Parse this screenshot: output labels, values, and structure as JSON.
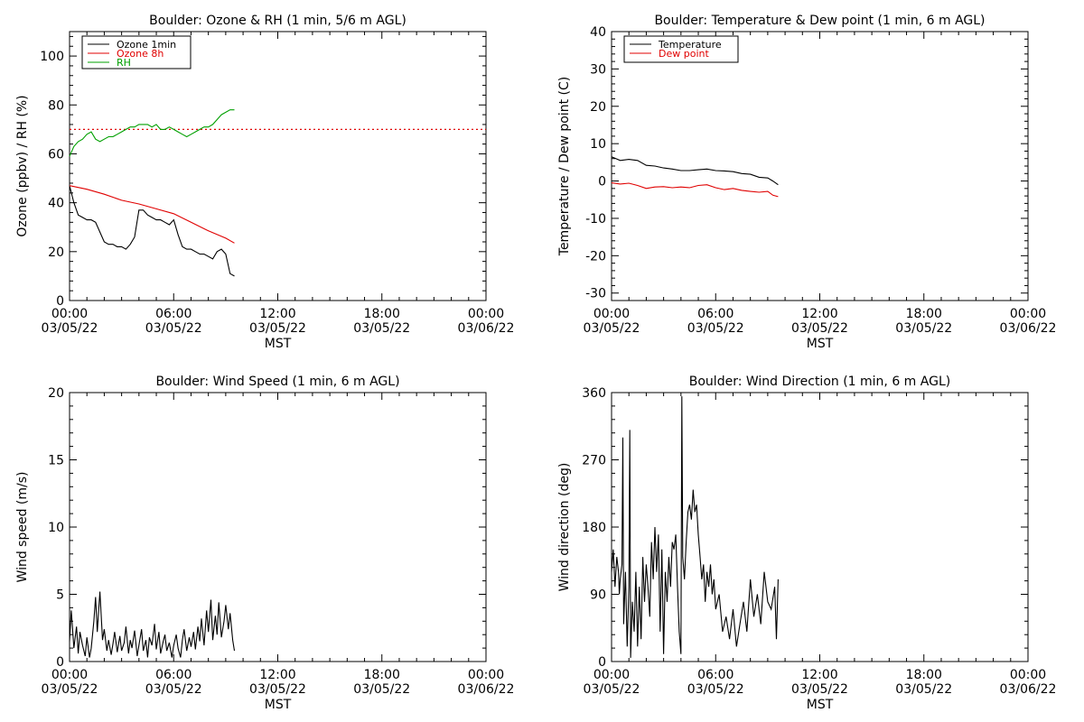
{
  "colors": {
    "black": "#000000",
    "red": "#e00000",
    "green": "#00a000"
  },
  "x_axis": {
    "hours": [
      0,
      6,
      12,
      18,
      24
    ],
    "time_labels": [
      "00:00",
      "06:00",
      "12:00",
      "18:00",
      "00:00"
    ],
    "date_labels": [
      "03/05/22",
      "03/05/22",
      "03/05/22",
      "03/05/22",
      "03/06/22"
    ],
    "label": "MST"
  },
  "chart_data": [
    {
      "type": "line",
      "title": "Boulder: Ozone & RH (1 min, 5/6 m AGL)",
      "xlabel": "MST",
      "ylabel": "Ozone (ppbv) / RH (%)",
      "xlim": [
        0,
        24
      ],
      "ylim": [
        0,
        110
      ],
      "yticks": [
        0,
        20,
        40,
        60,
        80,
        100
      ],
      "legend_position": "top-left",
      "reference_line": {
        "y": 70,
        "style": "dotted",
        "color": "#e00000"
      },
      "series": [
        {
          "name": "Ozone 1min",
          "color": "#000000",
          "x": [
            0.0,
            0.25,
            0.5,
            0.75,
            1.0,
            1.25,
            1.5,
            1.75,
            2.0,
            2.25,
            2.5,
            2.75,
            3.0,
            3.25,
            3.5,
            3.75,
            4.0,
            4.25,
            4.5,
            4.75,
            5.0,
            5.25,
            5.5,
            5.75,
            6.0,
            6.25,
            6.5,
            6.75,
            7.0,
            7.25,
            7.5,
            7.75,
            8.0,
            8.25,
            8.5,
            8.75,
            9.0,
            9.25,
            9.5
          ],
          "y": [
            47,
            40,
            35,
            34,
            33,
            33,
            32,
            28,
            24,
            23,
            23,
            22,
            22,
            21,
            23,
            26,
            37,
            37,
            35,
            34,
            33,
            33,
            32,
            31,
            33,
            27,
            22,
            21,
            21,
            20,
            19,
            19,
            18,
            17,
            20,
            21,
            19,
            11,
            10
          ]
        },
        {
          "name": "Ozone 8h",
          "color": "#e00000",
          "x": [
            0.0,
            1.0,
            2.0,
            3.0,
            4.0,
            5.0,
            6.0,
            7.0,
            8.0,
            9.0,
            9.5
          ],
          "y": [
            47,
            45.5,
            43.5,
            41,
            39.5,
            37.5,
            35.5,
            32,
            28.5,
            25.5,
            23.5
          ]
        },
        {
          "name": "RH",
          "color": "#00a000",
          "x": [
            0.0,
            0.25,
            0.5,
            0.75,
            1.0,
            1.25,
            1.5,
            1.75,
            2.0,
            2.25,
            2.5,
            2.75,
            3.0,
            3.25,
            3.5,
            3.75,
            4.0,
            4.25,
            4.5,
            4.75,
            5.0,
            5.25,
            5.5,
            5.75,
            6.0,
            6.25,
            6.5,
            6.75,
            7.0,
            7.25,
            7.5,
            7.75,
            8.0,
            8.25,
            8.5,
            8.75,
            9.0,
            9.25,
            9.5
          ],
          "y": [
            59,
            63,
            65,
            66,
            68,
            69,
            66,
            65,
            66,
            67,
            67,
            68,
            69,
            70,
            71,
            71,
            72,
            72,
            72,
            71,
            72,
            70,
            70,
            71,
            70,
            69,
            68,
            67,
            68,
            69,
            70,
            71,
            71,
            72,
            74,
            76,
            77,
            78,
            78
          ]
        }
      ]
    },
    {
      "type": "line",
      "title": "Boulder: Temperature & Dew point (1 min, 6 m AGL)",
      "xlabel": "MST",
      "ylabel": "Temperature / Dew point (C)",
      "xlim": [
        0,
        24
      ],
      "ylim": [
        -32,
        40
      ],
      "yticks": [
        -30,
        -20,
        -10,
        0,
        10,
        20,
        30,
        40
      ],
      "legend_position": "top-left",
      "series": [
        {
          "name": "Temperature",
          "color": "#000000",
          "x": [
            0.0,
            0.5,
            1.0,
            1.5,
            2.0,
            2.5,
            3.0,
            3.5,
            4.0,
            4.5,
            5.0,
            5.5,
            6.0,
            6.5,
            7.0,
            7.5,
            8.0,
            8.5,
            9.0,
            9.3,
            9.6
          ],
          "y": [
            6.5,
            5.5,
            5.8,
            5.5,
            4.2,
            4.0,
            3.5,
            3.2,
            2.8,
            2.8,
            3.0,
            3.2,
            2.8,
            2.7,
            2.5,
            2.0,
            1.8,
            1.0,
            0.8,
            0.0,
            -1.0
          ]
        },
        {
          "name": "Dew point",
          "color": "#e00000",
          "x": [
            0.0,
            0.5,
            1.0,
            1.5,
            2.0,
            2.5,
            3.0,
            3.5,
            4.0,
            4.5,
            5.0,
            5.5,
            6.0,
            6.5,
            7.0,
            7.5,
            8.0,
            8.5,
            9.0,
            9.3,
            9.6
          ],
          "y": [
            -0.5,
            -0.8,
            -0.6,
            -1.2,
            -2.0,
            -1.6,
            -1.5,
            -1.8,
            -1.6,
            -1.8,
            -1.2,
            -1.0,
            -1.8,
            -2.3,
            -2.0,
            -2.5,
            -2.8,
            -3.0,
            -2.8,
            -3.8,
            -4.2
          ]
        }
      ]
    },
    {
      "type": "line",
      "title": "Boulder: Wind Speed (1 min, 6 m AGL)",
      "xlabel": "MST",
      "ylabel": "Wind speed (m/s)",
      "xlim": [
        0,
        24
      ],
      "ylim": [
        0,
        20
      ],
      "yticks": [
        0,
        5,
        10,
        15,
        20
      ],
      "series": [
        {
          "color": "#000000",
          "x": [
            0.0,
            0.1,
            0.25,
            0.4,
            0.5,
            0.6,
            0.75,
            0.9,
            1.0,
            1.15,
            1.25,
            1.4,
            1.5,
            1.6,
            1.75,
            1.9,
            2.0,
            2.15,
            2.25,
            2.4,
            2.5,
            2.6,
            2.75,
            2.9,
            3.0,
            3.15,
            3.25,
            3.4,
            3.5,
            3.6,
            3.75,
            3.9,
            4.0,
            4.15,
            4.25,
            4.4,
            4.5,
            4.6,
            4.75,
            4.9,
            5.0,
            5.15,
            5.25,
            5.4,
            5.5,
            5.6,
            5.75,
            5.9,
            6.0,
            6.15,
            6.25,
            6.4,
            6.5,
            6.6,
            6.75,
            6.9,
            7.0,
            7.15,
            7.25,
            7.4,
            7.5,
            7.6,
            7.75,
            7.9,
            8.0,
            8.15,
            8.25,
            8.4,
            8.5,
            8.6,
            8.75,
            8.9,
            9.0,
            9.15,
            9.25,
            9.4,
            9.5
          ],
          "y": [
            1.5,
            3.8,
            1.0,
            2.6,
            0.6,
            2.2,
            1.2,
            0.4,
            1.8,
            0.3,
            1.0,
            3.0,
            4.8,
            2.2,
            5.2,
            1.6,
            2.4,
            0.8,
            1.6,
            0.5,
            1.3,
            2.2,
            0.7,
            1.9,
            0.8,
            1.4,
            2.6,
            0.6,
            1.6,
            1.0,
            2.3,
            0.4,
            1.2,
            2.4,
            0.8,
            1.6,
            0.3,
            1.8,
            1.2,
            2.8,
            0.9,
            2.2,
            0.6,
            1.5,
            2.0,
            0.8,
            1.4,
            0.3,
            1.2,
            2.0,
            1.0,
            0.3,
            1.6,
            2.4,
            0.8,
            1.8,
            1.1,
            2.2,
            0.9,
            2.6,
            1.5,
            3.2,
            1.2,
            3.8,
            2.2,
            4.6,
            1.6,
            3.4,
            2.0,
            4.4,
            1.8,
            3.0,
            4.2,
            2.4,
            3.6,
            1.6,
            0.8
          ]
        }
      ]
    },
    {
      "type": "line",
      "title": "Boulder: Wind Direction (1 min, 6 m AGL)",
      "xlabel": "MST",
      "ylabel": "Wind direction (deg)",
      "xlim": [
        0,
        24
      ],
      "ylim": [
        0,
        360
      ],
      "yticks": [
        0,
        90,
        180,
        270,
        360
      ],
      "series": [
        {
          "color": "#000000",
          "x": [
            0.0,
            0.1,
            0.2,
            0.3,
            0.4,
            0.45,
            0.5,
            0.6,
            0.65,
            0.7,
            0.8,
            0.9,
            1.0,
            1.05,
            1.1,
            1.2,
            1.3,
            1.4,
            1.5,
            1.6,
            1.7,
            1.8,
            1.9,
            2.0,
            2.1,
            2.2,
            2.3,
            2.4,
            2.5,
            2.6,
            2.7,
            2.8,
            2.9,
            3.0,
            3.1,
            3.2,
            3.3,
            3.4,
            3.5,
            3.6,
            3.7,
            3.8,
            3.9,
            4.0,
            4.05,
            4.1,
            4.2,
            4.3,
            4.4,
            4.5,
            4.6,
            4.7,
            4.8,
            4.9,
            5.0,
            5.1,
            5.2,
            5.3,
            5.4,
            5.5,
            5.6,
            5.7,
            5.8,
            5.9,
            6.0,
            6.2,
            6.4,
            6.6,
            6.8,
            7.0,
            7.2,
            7.4,
            7.6,
            7.8,
            8.0,
            8.2,
            8.4,
            8.6,
            8.8,
            9.0,
            9.2,
            9.4,
            9.5,
            9.6
          ],
          "y": [
            120,
            150,
            100,
            140,
            120,
            90,
            110,
            130,
            300,
            50,
            120,
            20,
            100,
            310,
            5,
            80,
            40,
            120,
            20,
            100,
            30,
            140,
            80,
            130,
            100,
            60,
            160,
            110,
            180,
            120,
            170,
            40,
            150,
            10,
            120,
            80,
            140,
            100,
            160,
            150,
            170,
            100,
            40,
            10,
            355,
            140,
            110,
            160,
            200,
            210,
            190,
            230,
            200,
            210,
            170,
            140,
            110,
            130,
            80,
            120,
            100,
            130,
            90,
            110,
            70,
            90,
            40,
            60,
            30,
            70,
            20,
            50,
            80,
            40,
            110,
            60,
            90,
            50,
            120,
            80,
            70,
            100,
            30,
            110
          ]
        }
      ]
    }
  ]
}
